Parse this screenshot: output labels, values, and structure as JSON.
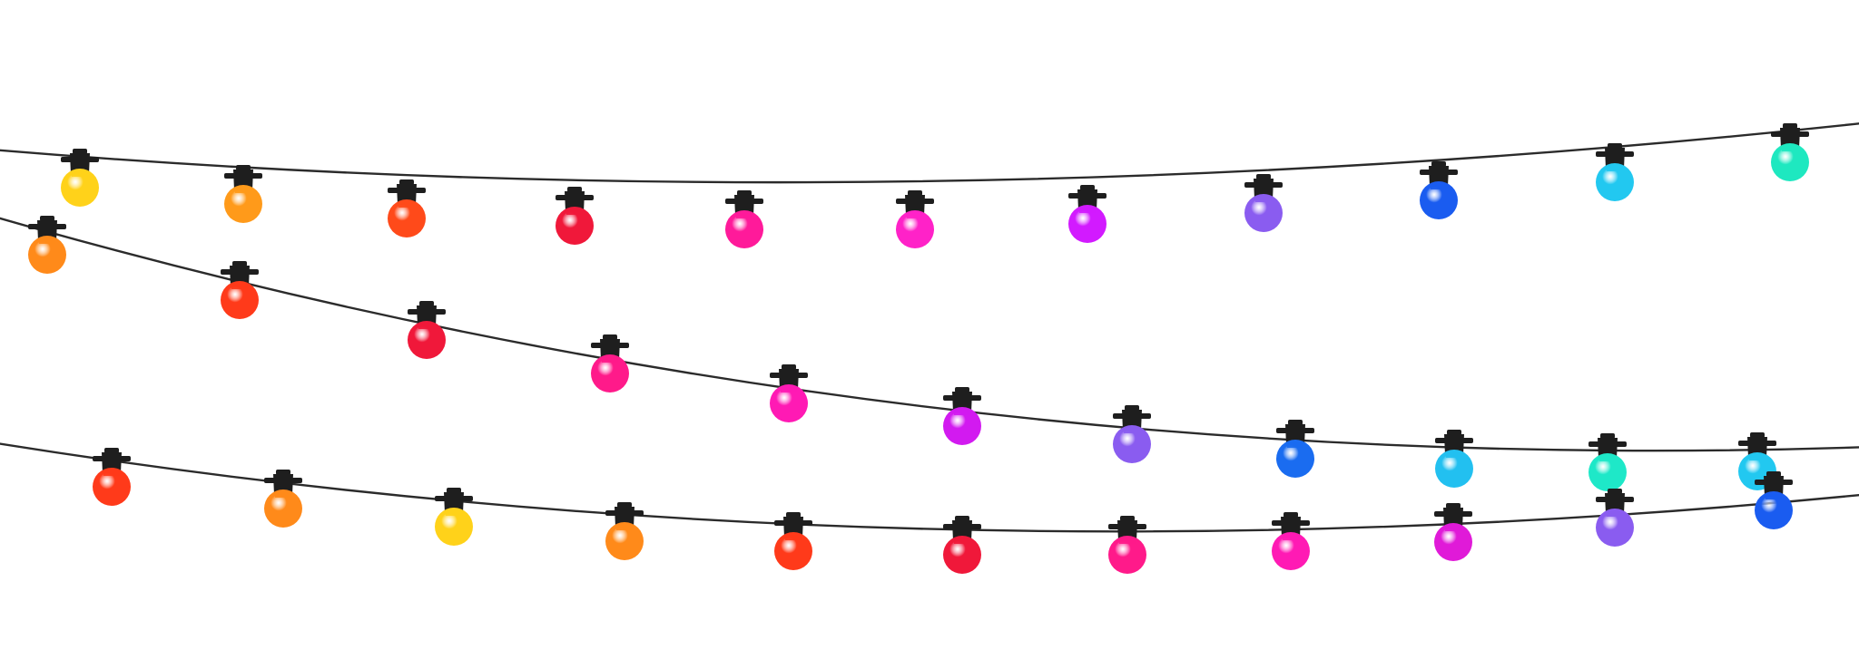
{
  "scene": {
    "background": "#ffffff",
    "wire_color": "#2b2b2b",
    "socket_color": "#1e1e1e",
    "strands": [
      {
        "name": "top-strand",
        "bulb_colors": [
          "#ffd21a",
          "#ff9a1a",
          "#ff4a1a",
          "#f0183a",
          "#ff1a9a",
          "#ff22c8",
          "#d21aff",
          "#8a5cf0",
          "#1a5cf0",
          "#22c8f0",
          "#1ee8c0"
        ]
      },
      {
        "name": "middle-strand",
        "bulb_colors": [
          "#ff8a1a",
          "#ff3a1a",
          "#f0183a",
          "#ff1a8a",
          "#ff1ab4",
          "#d21af0",
          "#8a5cf0",
          "#1a6cf0",
          "#22c0f0",
          "#1ee8c8",
          "#22c8f0"
        ]
      },
      {
        "name": "bottom-strand",
        "bulb_colors": [
          "#ff3a1a",
          "#ff8a1a",
          "#ffd21a",
          "#ff8a1a",
          "#ff3a1a",
          "#f0183a",
          "#ff1a8a",
          "#ff1ab4",
          "#e01ad8",
          "#8a5cf0",
          "#1a5cf0"
        ]
      }
    ]
  }
}
